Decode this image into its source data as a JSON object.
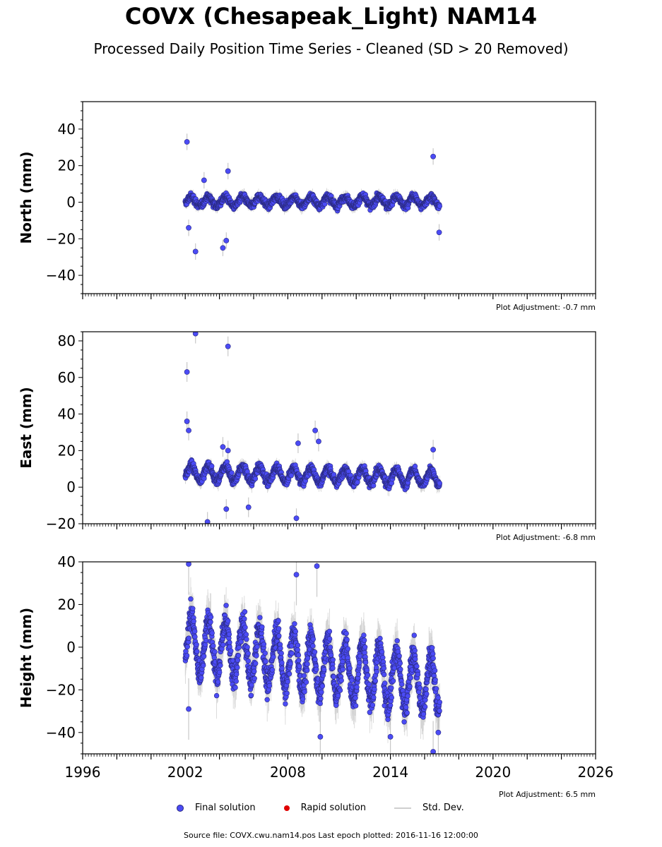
{
  "header": {
    "title": "COVX (Chesapeak_Light) NAM14",
    "subtitle": "Processed Daily Position Time Series - Cleaned (SD > 20 Removed)"
  },
  "chart_data": [
    {
      "type": "scatter",
      "ylabel": "North (mm)",
      "xlim": [
        1996,
        2026
      ],
      "ylim": [
        -50,
        55
      ],
      "yticks": [
        -40,
        -20,
        0,
        20,
        40
      ],
      "plot_adjustment": "Plot Adjustment: -0.7 mm",
      "data_span": [
        2002.0,
        2016.88
      ],
      "series": [
        {
          "name": "Final solution",
          "trend": [
            [
              2002.0,
              0.5
            ],
            [
              2016.88,
              0.5
            ]
          ],
          "seasonal_amplitude": 2.5,
          "scatter": 2.5,
          "outliers": [
            [
              2002.1,
              33
            ],
            [
              2002.6,
              -27
            ],
            [
              2004.2,
              -25
            ],
            [
              2004.4,
              -21
            ],
            [
              2004.5,
              17
            ],
            [
              2003.1,
              12
            ],
            [
              2016.5,
              25
            ],
            [
              2016.85,
              -16.5
            ],
            [
              2002.2,
              -14
            ]
          ]
        }
      ]
    },
    {
      "type": "scatter",
      "ylabel": "East (mm)",
      "xlim": [
        1996,
        2026
      ],
      "ylim": [
        -20,
        85
      ],
      "yticks": [
        -20,
        0,
        20,
        40,
        60,
        80
      ],
      "plot_adjustment": "Plot Adjustment: -6.8 mm",
      "data_span": [
        2002.0,
        2016.88
      ],
      "series": [
        {
          "name": "Final solution",
          "trend": [
            [
              2002.0,
              8
            ],
            [
              2016.88,
              5
            ]
          ],
          "seasonal_amplitude": 4,
          "scatter": 3,
          "outliers": [
            [
              2002.1,
              63
            ],
            [
              2002.6,
              84
            ],
            [
              2004.5,
              77
            ],
            [
              2002.1,
              36
            ],
            [
              2002.2,
              31
            ],
            [
              2004.2,
              22
            ],
            [
              2004.5,
              20
            ],
            [
              2003.3,
              -19
            ],
            [
              2004.4,
              -12
            ],
            [
              2005.7,
              -11
            ],
            [
              2008.6,
              24
            ],
            [
              2009.6,
              31
            ],
            [
              2009.8,
              25
            ],
            [
              2008.5,
              -17
            ],
            [
              2016.5,
              20.5
            ]
          ]
        }
      ]
    },
    {
      "type": "scatter",
      "ylabel": "Height (mm)",
      "xlim": [
        1996,
        2026
      ],
      "ylim": [
        -50,
        40
      ],
      "yticks": [
        -40,
        -20,
        0,
        20,
        40
      ],
      "xticks": [
        1996,
        2002,
        2008,
        2014,
        2020,
        2026
      ],
      "plot_adjustment": "Plot Adjustment: 6.5 mm",
      "data_span": [
        2002.0,
        2016.88
      ],
      "series": [
        {
          "name": "Final solution",
          "trend": [
            [
              2002.0,
              2
            ],
            [
              2016.88,
              -18
            ]
          ],
          "seasonal_amplitude": 13,
          "scatter": 8,
          "outliers": [
            [
              2002.2,
              39
            ],
            [
              2002.2,
              -29
            ],
            [
              2009.7,
              38
            ],
            [
              2008.5,
              34
            ],
            [
              2009.9,
              -42
            ],
            [
              2014.0,
              -42
            ],
            [
              2016.5,
              -49
            ],
            [
              2016.8,
              -40
            ]
          ]
        }
      ]
    }
  ],
  "legend": {
    "final_label": "Final solution",
    "rapid_label": "Rapid solution",
    "std_label": "Std. Dev."
  },
  "footer": {
    "source": "Source file: COVX.cwu.nam14.pos  Last epoch plotted: 2016-11-16 12:00:00"
  },
  "colors": {
    "final": "#4b4bf5",
    "final_edge": "#2a2a80",
    "rapid": "#e00000",
    "std": "#b0b0b0"
  }
}
